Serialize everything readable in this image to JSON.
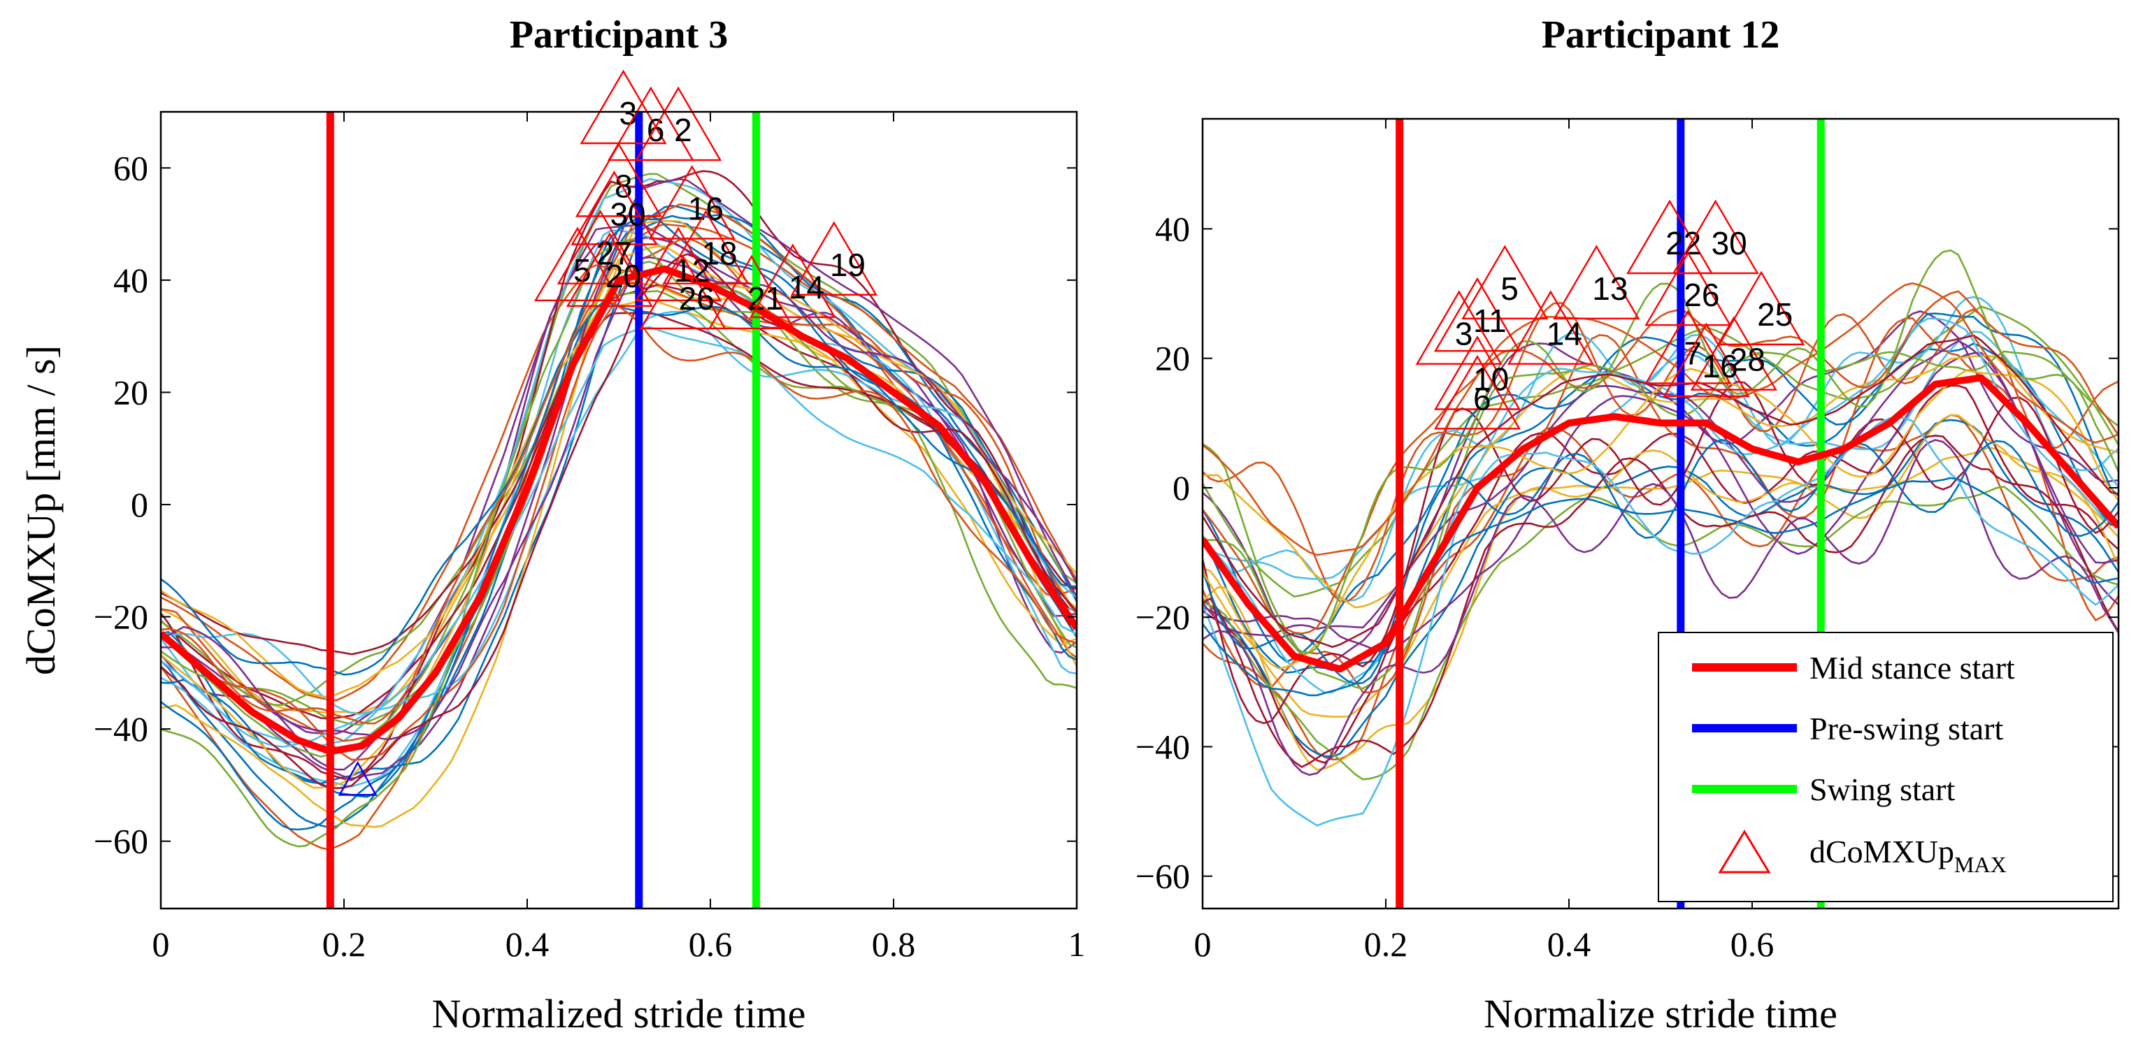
{
  "chart_data": [
    {
      "type": "line",
      "title": "Participant 3",
      "xlabel": "Normalized stride time",
      "ylabel": "dCoMXUp [mm / s]",
      "xlim": [
        0,
        1
      ],
      "ylim": [
        -72,
        70
      ],
      "xticks": [
        0,
        0.2,
        0.4,
        0.6,
        0.8,
        1
      ],
      "xtick_labels": [
        "0",
        "0.2",
        "0.4",
        "0.6",
        "0.8",
        "1"
      ],
      "yticks": [
        -60,
        -40,
        -20,
        0,
        20,
        40,
        60
      ],
      "ytick_labels": [
        "−60",
        "−40",
        "−20",
        "0",
        "20",
        "40",
        "60"
      ],
      "grid": false,
      "vlines": [
        {
          "name": "Mid stance start",
          "x": 0.185,
          "color": "#ff0000"
        },
        {
          "name": "Pre-swing start",
          "x": 0.522,
          "color": "#0000ff"
        },
        {
          "name": "Swing start",
          "x": 0.65,
          "color": "#00ff00"
        }
      ],
      "mean_curve": {
        "x": [
          0,
          0.05,
          0.1,
          0.15,
          0.185,
          0.22,
          0.26,
          0.3,
          0.35,
          0.4,
          0.45,
          0.5,
          0.55,
          0.6,
          0.65,
          0.7,
          0.75,
          0.8,
          0.85,
          0.9,
          0.95,
          1
        ],
        "y": [
          -23,
          -30,
          -37,
          -42,
          -44,
          -43,
          -38,
          -30,
          -16,
          3,
          25,
          40,
          42,
          39,
          35,
          30,
          26,
          20,
          14,
          4,
          -10,
          -22
        ]
      },
      "peaks": [
        {
          "label": "3",
          "x": 0.505,
          "y": 70
        },
        {
          "label": "6",
          "x": 0.535,
          "y": 67
        },
        {
          "label": "2",
          "x": 0.565,
          "y": 67
        },
        {
          "label": "8",
          "x": 0.5,
          "y": 57
        },
        {
          "label": "30",
          "x": 0.495,
          "y": 52
        },
        {
          "label": "16",
          "x": 0.58,
          "y": 53
        },
        {
          "label": "27",
          "x": 0.48,
          "y": 45
        },
        {
          "label": "18",
          "x": 0.595,
          "y": 45
        },
        {
          "label": "5",
          "x": 0.455,
          "y": 42
        },
        {
          "label": "20",
          "x": 0.49,
          "y": 41
        },
        {
          "label": "12",
          "x": 0.565,
          "y": 42
        },
        {
          "label": "19",
          "x": 0.735,
          "y": 43
        },
        {
          "label": "26",
          "x": 0.57,
          "y": 37
        },
        {
          "label": "21",
          "x": 0.645,
          "y": 37
        },
        {
          "label": "14",
          "x": 0.69,
          "y": 39
        }
      ],
      "min_marker": {
        "x": 0.215,
        "y": -50
      }
    },
    {
      "type": "line",
      "title": "Participant 12",
      "xlabel": "Normalize stride time",
      "ylabel": "",
      "xlim": [
        0,
        1
      ],
      "ylim": [
        -65,
        57
      ],
      "xticks": [
        0,
        0.2,
        0.4,
        0.6
      ],
      "xtick_labels": [
        "0",
        "0.2",
        "0.4",
        "0.6"
      ],
      "yticks": [
        -60,
        -40,
        -20,
        0,
        20,
        40
      ],
      "ytick_labels": [
        "−60",
        "−40",
        "−20",
        "0",
        "20",
        "40"
      ],
      "grid": false,
      "vlines": [
        {
          "name": "Mid stance start",
          "x": 0.215,
          "color": "#ff0000"
        },
        {
          "name": "Pre-swing start",
          "x": 0.522,
          "color": "#0000ff"
        },
        {
          "name": "Swing start",
          "x": 0.675,
          "color": "#00ff00"
        }
      ],
      "mean_curve": {
        "x": [
          0,
          0.05,
          0.1,
          0.15,
          0.2,
          0.25,
          0.3,
          0.35,
          0.4,
          0.45,
          0.5,
          0.55,
          0.6,
          0.65,
          0.7,
          0.75,
          0.8,
          0.85,
          0.9,
          0.95,
          1
        ],
        "y": [
          -8,
          -18,
          -26,
          -28,
          -24,
          -12,
          0,
          6,
          10,
          11,
          10,
          10,
          6,
          4,
          6,
          10,
          16,
          17,
          10,
          2,
          -6
        ]
      },
      "peaks": [
        {
          "label": "22",
          "x": 0.51,
          "y": 38
        },
        {
          "label": "30",
          "x": 0.56,
          "y": 38
        },
        {
          "label": "5",
          "x": 0.33,
          "y": 31
        },
        {
          "label": "13",
          "x": 0.43,
          "y": 31
        },
        {
          "label": "11",
          "x": 0.3,
          "y": 26
        },
        {
          "label": "3",
          "x": 0.28,
          "y": 24
        },
        {
          "label": "14",
          "x": 0.38,
          "y": 24
        },
        {
          "label": "26",
          "x": 0.53,
          "y": 30
        },
        {
          "label": "25",
          "x": 0.61,
          "y": 27
        },
        {
          "label": "7",
          "x": 0.53,
          "y": 21
        },
        {
          "label": "28",
          "x": 0.58,
          "y": 20
        },
        {
          "label": "16",
          "x": 0.55,
          "y": 19
        },
        {
          "label": "10",
          "x": 0.3,
          "y": 17
        },
        {
          "label": "6",
          "x": 0.3,
          "y": 14
        }
      ]
    }
  ],
  "legend": {
    "placement": "bottom-right",
    "entries": [
      {
        "label": "Mid stance start",
        "color": "#ff0000",
        "kind": "line"
      },
      {
        "label": "Pre-swing start",
        "color": "#0000ff",
        "kind": "line"
      },
      {
        "label": "Swing start",
        "color": "#00ff00",
        "kind": "line"
      },
      {
        "label": "dCoMXUp",
        "subscript": "MAX",
        "color": "#ff0000",
        "kind": "triangle"
      }
    ]
  },
  "trial_colors": [
    "#0072bd",
    "#d95319",
    "#edb120",
    "#7e2f8e",
    "#77ac30",
    "#4dbeee",
    "#a2142f"
  ]
}
